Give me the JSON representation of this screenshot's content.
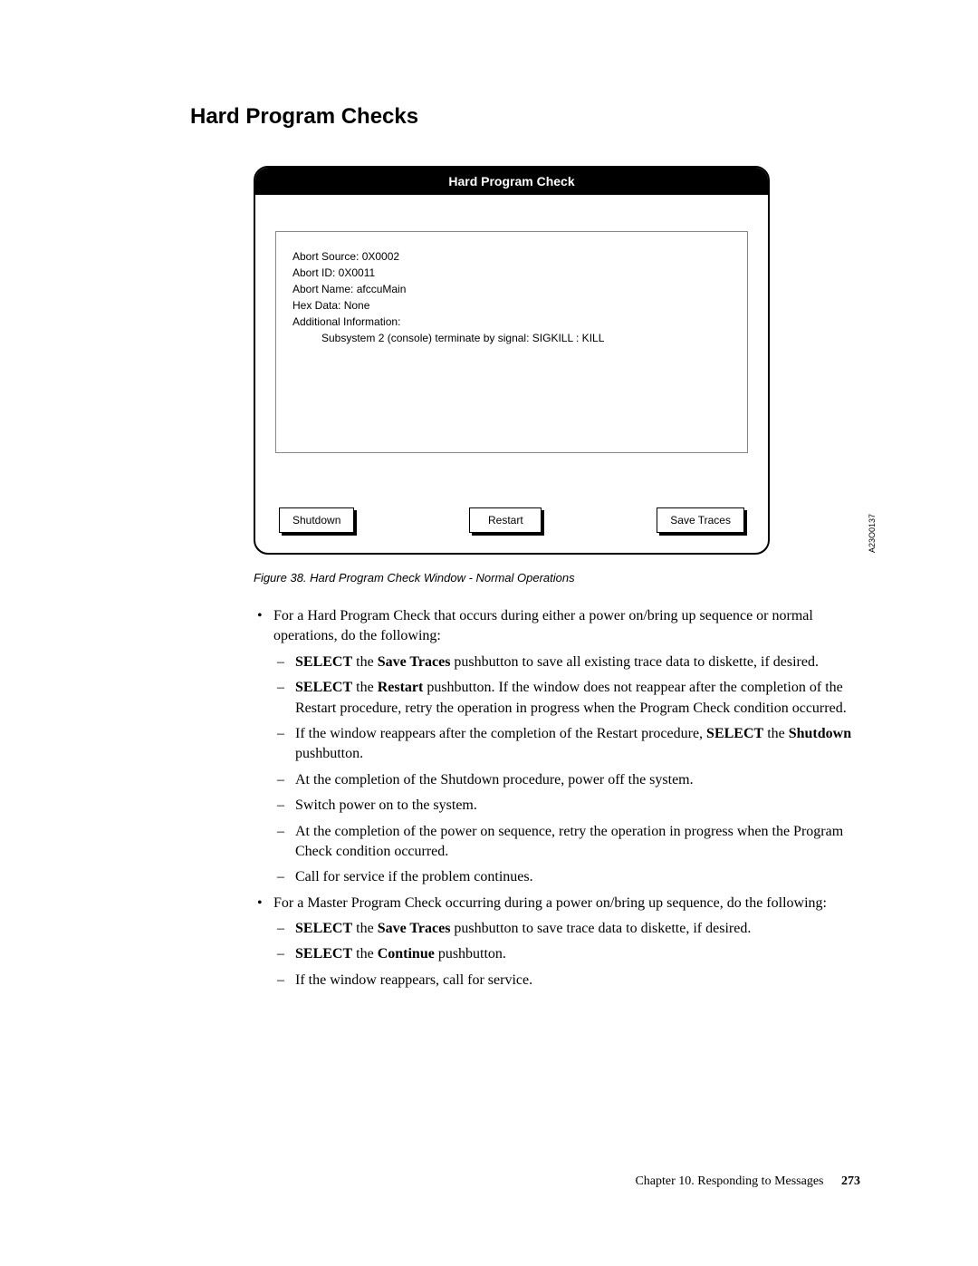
{
  "section_title": "Hard Program Checks",
  "dialog": {
    "title": "Hard Program Check",
    "info": {
      "line1": "Abort Source: 0X0002",
      "line2": "Abort ID: 0X0011",
      "line3": "Abort Name: afccuMain",
      "line4": "Hex Data: None",
      "line5": "Additional Information:",
      "line6": "Subsystem 2 (console) terminate by signal: SIGKILL : KILL"
    },
    "buttons": {
      "shutdown": "Shutdown",
      "restart": "Restart",
      "save_traces": "Save Traces"
    },
    "figure_code": "A23O0137"
  },
  "figure_caption": "Figure 38. Hard Program Check Window - Normal Operations",
  "list1": {
    "intro": "For a Hard Program Check that occurs during either a power on/bring up sequence or normal operations, do the following:",
    "d1_a": "SELECT",
    "d1_b": " the ",
    "d1_c": "Save Traces",
    "d1_d": " pushbutton to save all existing trace data to diskette, if desired.",
    "d2_a": "SELECT",
    "d2_b": " the ",
    "d2_c": "Restart",
    "d2_d": " pushbutton. If the window does not reappear after the completion of the Restart procedure, retry the operation in progress when the Program Check condition occurred.",
    "d3_a": "If the window reappears after the completion of the Restart procedure, ",
    "d3_b": "SELECT",
    "d3_c": " the ",
    "d3_d": "Shutdown",
    "d3_e": " pushbutton.",
    "d4": "At the completion of the Shutdown procedure, power off the system.",
    "d5": "Switch power on to the system.",
    "d6": "At the completion of the power on sequence, retry the operation in progress when the Program Check condition occurred.",
    "d7": "Call for service if the problem continues."
  },
  "list2": {
    "intro": "For a Master Program Check occurring during a power on/bring up sequence, do the following:",
    "d1_a": "SELECT",
    "d1_b": " the ",
    "d1_c": "Save Traces",
    "d1_d": " pushbutton to save trace data to diskette, if desired.",
    "d2_a": "SELECT",
    "d2_b": " the ",
    "d2_c": "Continue",
    "d2_d": " pushbutton.",
    "d3": "If the window reappears, call for service."
  },
  "footer": {
    "chapter": "Chapter 10. Responding to Messages",
    "page": "273"
  }
}
